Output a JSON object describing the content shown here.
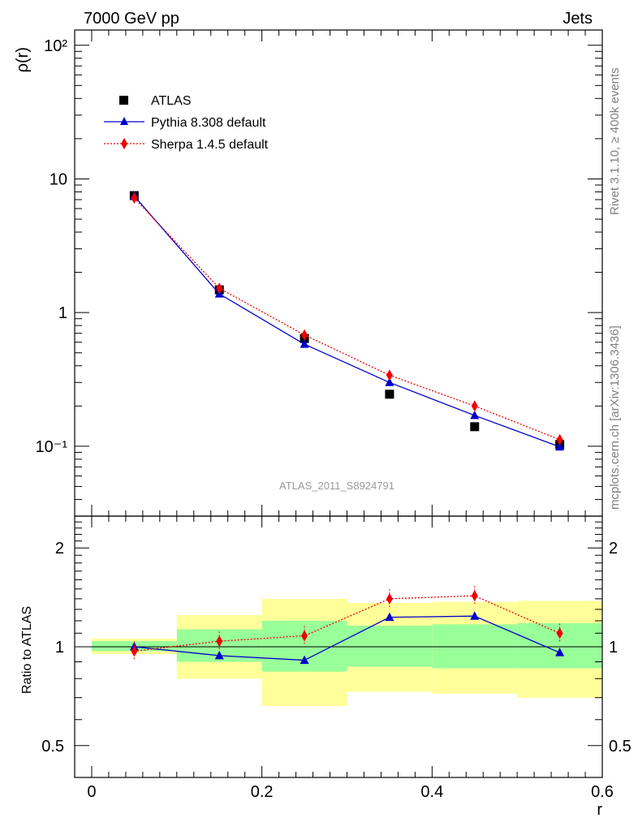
{
  "chart_data": [
    {
      "type": "line",
      "panel": "main",
      "title_left": "7000 GeV pp",
      "title_right": "Jets",
      "ylabel": "ρ(r)",
      "yscale": "log",
      "ylim": [
        0.03,
        130
      ],
      "xlim": [
        -0.02,
        0.6
      ],
      "watermark": "ATLAS_2011_S8924791",
      "side_text_top": "Rivet 3.1.10, ≥ 400k events",
      "side_text_bottom": "mcplots.cern.ch [arXiv:1306.3436]",
      "ytick_labels": [
        "10⁻¹",
        "1",
        "10",
        "10²"
      ],
      "ytick_values": [
        0.1,
        1,
        10,
        100
      ],
      "x": [
        0.05,
        0.15,
        0.25,
        0.35,
        0.45,
        0.55
      ],
      "series": [
        {
          "name": "ATLAS",
          "marker": "square",
          "color": "#000000",
          "values": [
            7.5,
            1.48,
            0.64,
            0.245,
            0.14,
            0.103
          ]
        },
        {
          "name": "Pythia 8.308 default",
          "marker": "triangle",
          "color": "#0000cc",
          "values": [
            7.45,
            1.38,
            0.58,
            0.3,
            0.17,
            0.099
          ]
        },
        {
          "name": "Sherpa 1.4.5 default",
          "marker": "diamond",
          "color": "#ee0000",
          "values": [
            7.2,
            1.52,
            0.68,
            0.34,
            0.2,
            0.112
          ]
        }
      ]
    },
    {
      "type": "line",
      "panel": "ratio",
      "ylabel": "Ratio to ATLAS",
      "xlabel": "r",
      "yscale": "log",
      "ylim": [
        0.4,
        2.5
      ],
      "xlim": [
        -0.02,
        0.6
      ],
      "xtick_labels": [
        "0",
        "0.2",
        "0.4",
        "0.6"
      ],
      "xtick_values": [
        0,
        0.2,
        0.4,
        0.6
      ],
      "ytick_labels": [
        "0.5",
        "1",
        "2"
      ],
      "ytick_values": [
        0.5,
        1,
        2
      ],
      "bins": [
        [
          0,
          0.1
        ],
        [
          0.1,
          0.2
        ],
        [
          0.2,
          0.3
        ],
        [
          0.3,
          0.4
        ],
        [
          0.4,
          0.5
        ],
        [
          0.5,
          0.6
        ]
      ],
      "band_inner": [
        [
          0.97,
          1.04
        ],
        [
          0.9,
          1.13
        ],
        [
          0.84,
          1.2
        ],
        [
          0.87,
          1.16
        ],
        [
          0.86,
          1.17
        ],
        [
          0.86,
          1.18
        ]
      ],
      "band_outer": [
        [
          0.95,
          1.06
        ],
        [
          0.8,
          1.25
        ],
        [
          0.66,
          1.4
        ],
        [
          0.73,
          1.36
        ],
        [
          0.72,
          1.37
        ],
        [
          0.7,
          1.38
        ]
      ],
      "x": [
        0.05,
        0.15,
        0.25,
        0.35,
        0.45,
        0.55
      ],
      "series": [
        {
          "name": "Pythia 8.308 default",
          "marker": "triangle",
          "color": "#0000cc",
          "values": [
            1.0,
            0.94,
            0.91,
            1.23,
            1.24,
            0.96
          ]
        },
        {
          "name": "Sherpa 1.4.5 default",
          "marker": "diamond",
          "color": "#ee0000",
          "values": [
            0.97,
            1.04,
            1.08,
            1.4,
            1.43,
            1.1
          ]
        }
      ],
      "band_colors": {
        "outer": "#ffff99",
        "inner": "#99ff99"
      }
    }
  ]
}
